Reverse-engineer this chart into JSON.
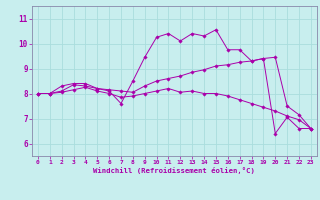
{
  "title": "",
  "xlabel": "Windchill (Refroidissement éolien,°C)",
  "background_color": "#c8eeee",
  "grid_color": "#aadddd",
  "line_color": "#aa00aa",
  "spine_color": "#8888aa",
  "xlim": [
    -0.5,
    23.5
  ],
  "ylim": [
    5.5,
    11.5
  ],
  "xticks": [
    0,
    1,
    2,
    3,
    4,
    5,
    6,
    7,
    8,
    9,
    10,
    11,
    12,
    13,
    14,
    15,
    16,
    17,
    18,
    19,
    20,
    21,
    22,
    23
  ],
  "yticks": [
    6,
    7,
    8,
    9,
    10,
    11
  ],
  "series": [
    {
      "x": [
        0,
        1,
        2,
        3,
        4,
        5,
        6,
        7,
        8,
        9,
        10,
        11,
        12,
        13,
        14,
        15,
        16,
        17,
        18,
        19,
        20,
        21,
        22,
        23
      ],
      "y": [
        8.0,
        8.0,
        8.3,
        8.4,
        8.4,
        8.2,
        8.1,
        7.6,
        8.5,
        9.45,
        10.25,
        10.4,
        10.1,
        10.4,
        10.3,
        10.55,
        9.75,
        9.75,
        9.3,
        9.4,
        6.4,
        7.05,
        6.6,
        6.6
      ]
    },
    {
      "x": [
        0,
        1,
        2,
        3,
        4,
        5,
        6,
        7,
        8,
        9,
        10,
        11,
        12,
        13,
        14,
        15,
        16,
        17,
        18,
        19,
        20,
        21,
        22,
        23
      ],
      "y": [
        8.0,
        8.0,
        8.1,
        8.35,
        8.3,
        8.2,
        8.15,
        8.1,
        8.05,
        8.3,
        8.5,
        8.6,
        8.7,
        8.85,
        8.95,
        9.1,
        9.15,
        9.25,
        9.3,
        9.4,
        9.45,
        7.5,
        7.15,
        6.6
      ]
    },
    {
      "x": [
        0,
        1,
        2,
        3,
        4,
        5,
        6,
        7,
        8,
        9,
        10,
        11,
        12,
        13,
        14,
        15,
        16,
        17,
        18,
        19,
        20,
        21,
        22,
        23
      ],
      "y": [
        8.0,
        8.0,
        8.05,
        8.15,
        8.25,
        8.1,
        8.0,
        7.85,
        7.9,
        8.0,
        8.1,
        8.2,
        8.05,
        8.1,
        8.0,
        8.0,
        7.9,
        7.75,
        7.6,
        7.45,
        7.3,
        7.1,
        6.95,
        6.6
      ]
    }
  ]
}
